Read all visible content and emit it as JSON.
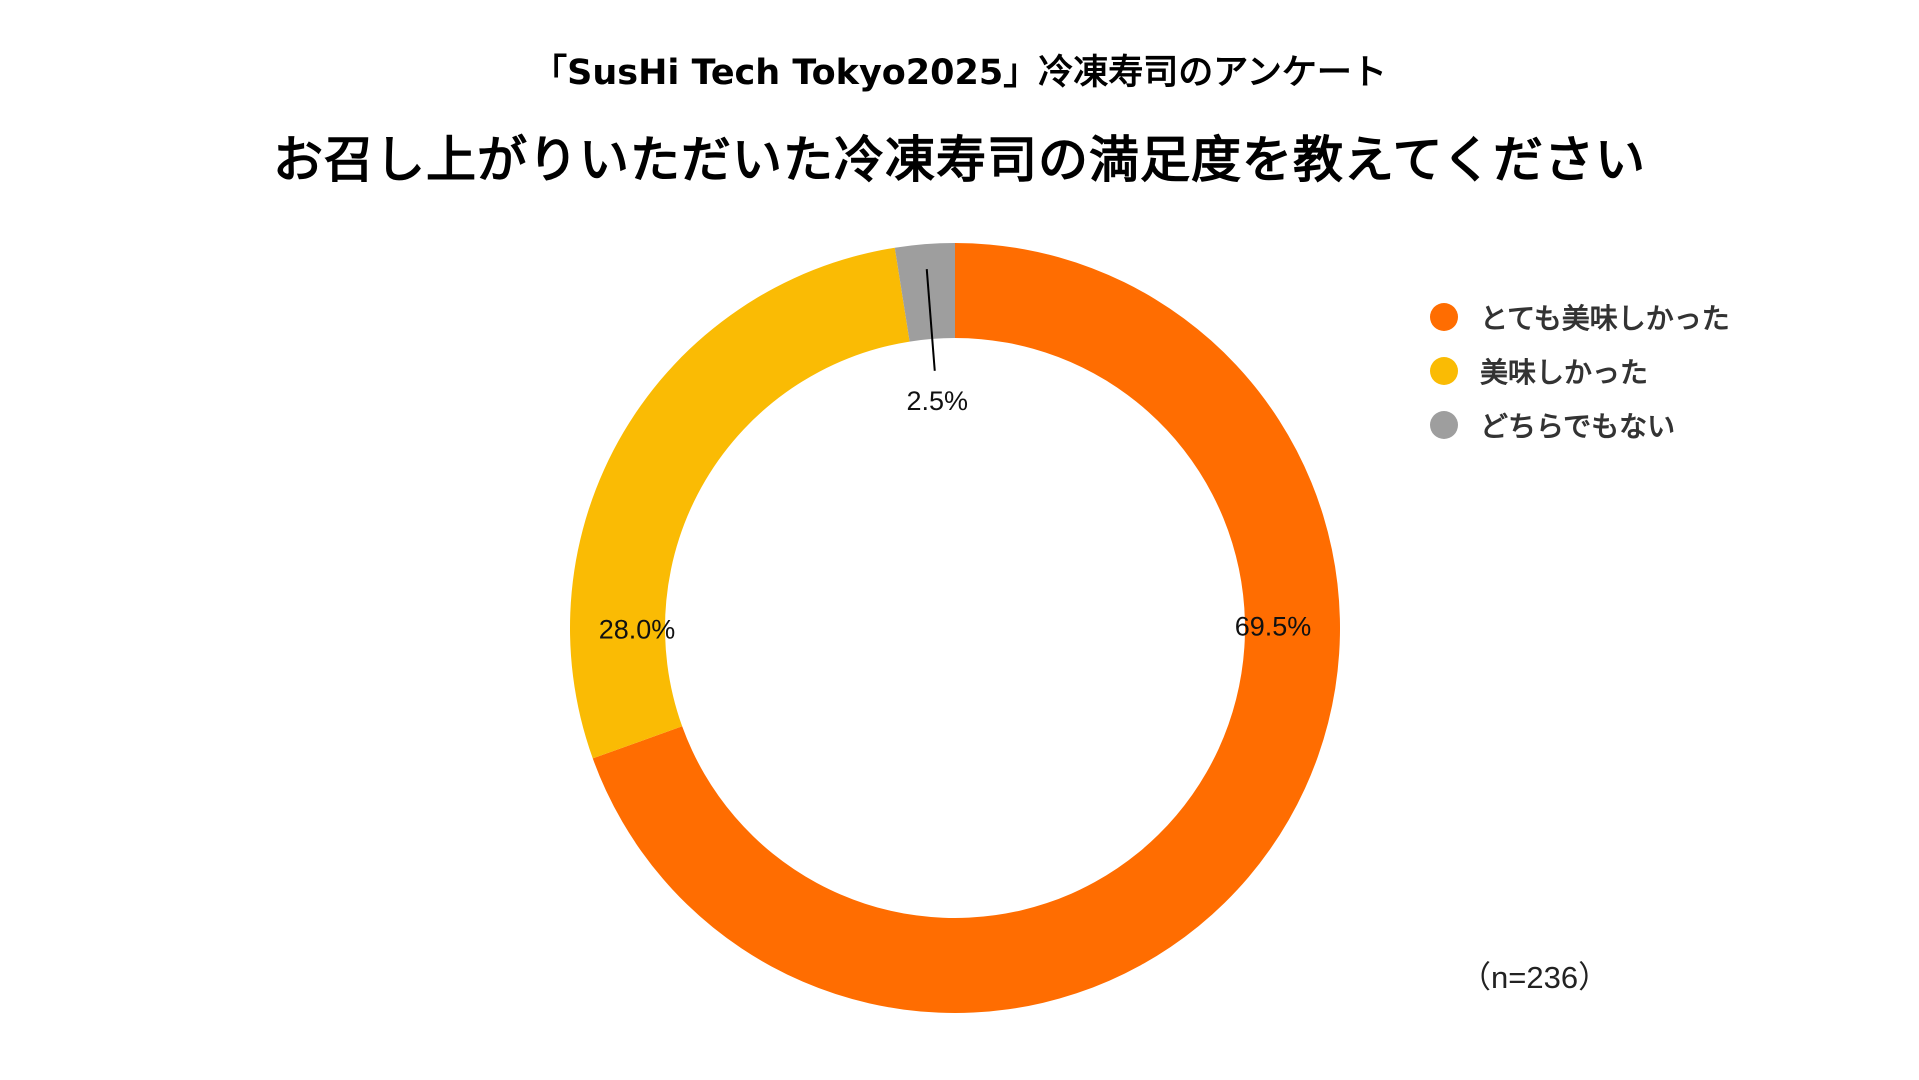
{
  "survey_title": "「SusHi Tech Tokyo2025」冷凍寿司のアンケート",
  "question": "お召し上がりいただいた冷凍寿司の満足度を教えてください",
  "sample_size": "（n=236）",
  "chart_data": {
    "type": "pie",
    "style": "donut",
    "start_angle_deg": 0,
    "direction": "clockwise",
    "legend_position": "right",
    "slices": [
      {
        "name": "とても美味しかった",
        "value": 69.5,
        "label": "69.5%",
        "color": "#FF6D01"
      },
      {
        "name": "美味しかった",
        "value": 28.0,
        "label": "28.0%",
        "color": "#FABB04"
      },
      {
        "name": "どちらでもない",
        "value": 2.5,
        "label": "2.5%",
        "color": "#9E9E9E"
      }
    ]
  }
}
